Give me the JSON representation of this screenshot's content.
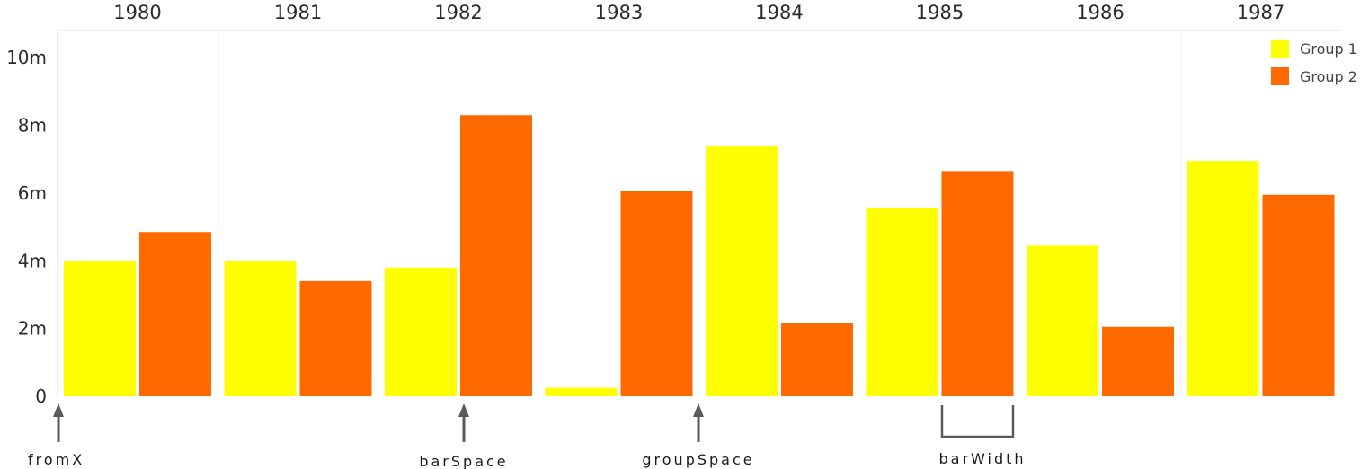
{
  "chart_data": {
    "type": "bar",
    "categories": [
      "1980",
      "1981",
      "1982",
      "1983",
      "1984",
      "1985",
      "1986",
      "1987"
    ],
    "series": [
      {
        "name": "Group 1",
        "color": "#ffff00",
        "values": [
          4.0,
          4.0,
          3.8,
          0.25,
          7.4,
          5.55,
          4.45,
          6.95
        ]
      },
      {
        "name": "Group 2",
        "color": "#ff6a00",
        "values": [
          4.85,
          3.4,
          8.3,
          6.05,
          2.15,
          6.65,
          2.05,
          5.95
        ]
      }
    ],
    "ylim": [
      0,
      10.8
    ],
    "yticks": [
      0,
      2,
      4,
      6,
      8,
      10
    ],
    "ytick_labels": [
      "0",
      "2m",
      "4m",
      "6m",
      "8m",
      "10m"
    ],
    "x_axis_position": "top",
    "legend_position": "top-right",
    "annotations": [
      {
        "label": "fromX",
        "type": "arrow"
      },
      {
        "label": "barSpace",
        "type": "arrow"
      },
      {
        "label": "groupSpace",
        "type": "arrow"
      },
      {
        "label": "barWidth",
        "type": "bracket"
      }
    ]
  }
}
